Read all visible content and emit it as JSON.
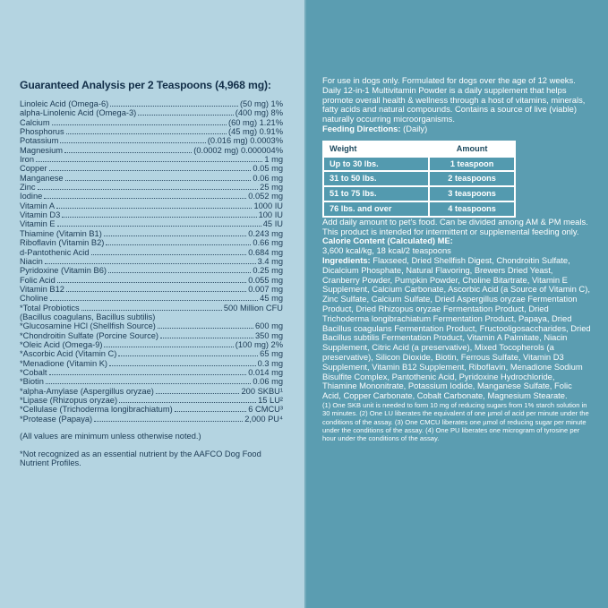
{
  "colors": {
    "left_panel_bg": "#b4d4e1",
    "right_panel_bg": "#5b9db1",
    "dark_text": "#1b3a54",
    "table_row_bg": "#539aaf",
    "white_text": "#ffffff"
  },
  "left_panel": {
    "title": "Guaranteed Analysis per 2 Teaspoons (4,968 mg):",
    "rows": [
      {
        "name": "Linoleic Acid (Omega-6)",
        "value": "(50 mg) 1%"
      },
      {
        "name": "alpha-Linolenic Acid (Omega-3)",
        "value": "(400 mg) 8%"
      },
      {
        "name": "Calcium",
        "value": "(60 mg) 1.21%"
      },
      {
        "name": "Phosphorus",
        "value": "(45 mg) 0.91%"
      },
      {
        "name": "Potassium",
        "value": "(0.016 mg) 0.0003%"
      },
      {
        "name": "Magnesium",
        "value": "(0.0002 mg) 0.000004%"
      },
      {
        "name": "Iron",
        "value": "1 mg"
      },
      {
        "name": "Copper",
        "value": "0.05 mg"
      },
      {
        "name": "Manganese",
        "value": "0.06 mg"
      },
      {
        "name": "Zinc",
        "value": "25 mg"
      },
      {
        "name": "Iodine",
        "value": "0.052 mg"
      },
      {
        "name": "Vitamin A",
        "value": "1000 IU"
      },
      {
        "name": "Vitamin D3",
        "value": "100 IU"
      },
      {
        "name": "Vitamin E",
        "value": "45 IU"
      },
      {
        "name": "Thiamine (Vitamin B1)",
        "value": "0.243 mg"
      },
      {
        "name": "Riboflavin (Vitamin B2)",
        "value": "0.66 mg"
      },
      {
        "name": "d-Pantothenic Acid",
        "value": "0.684 mg"
      },
      {
        "name": "Niacin",
        "value": "3.4 mg"
      },
      {
        "name": "Pyridoxine (Vitamin B6)",
        "value": "0.25 mg"
      },
      {
        "name": "Folic Acid",
        "value": "0.055 mg"
      },
      {
        "name": "Vitamin B12",
        "value": "0.007 mg"
      },
      {
        "name": "Choline",
        "value": "45 mg"
      },
      {
        "name": "*Total Probiotics",
        "value": "500 Million CFU"
      },
      {
        "name": "(Bacillus coagulans, Bacillus subtilis)",
        "value": ""
      },
      {
        "name": "*Glucosamine HCl (Shellfish Source)",
        "value": "600 mg"
      },
      {
        "name": "*Chondroitin Sulfate (Porcine Source)",
        "value": "350 mg"
      },
      {
        "name": "*Oleic Acid (Omega-9)",
        "value": "(100 mg) 2%"
      },
      {
        "name": "*Ascorbic Acid (Vitamin C)",
        "value": "65 mg"
      },
      {
        "name": "*Menadione (Vitamin K)",
        "value": "0.3 mg"
      },
      {
        "name": "*Cobalt",
        "value": "0.014 mg"
      },
      {
        "name": "*Biotin",
        "value": "0.06 mg"
      },
      {
        "name": "*alpha-Amylase (Aspergillus oryzae)",
        "value": "200 SKBU¹"
      },
      {
        "name": "*Lipase (Rhizopus oryzae)",
        "value": "15 LU²"
      },
      {
        "name": "*Cellulase (Trichoderma longibrachiatum)",
        "value": "6 CMCU³"
      },
      {
        "name": "*Protease (Papaya)",
        "value": "2,000 PU⁴"
      }
    ],
    "values_note": "(All values are minimum unless otherwise noted.)",
    "aafco_note": "*Not recognized as an essential nutrient by the AAFCO Dog Food Nutrient Profiles."
  },
  "right_panel": {
    "intro": "For use in dogs only. Formulated for dogs over the age of 12 weeks. Daily 12-in-1 Multivitamin Powder is a daily supplement that helps promote overall health & wellness through a host of vitamins, minerals, fatty acids and natural compounds. Contains a source of live (viable) naturally occurring microorganisms.",
    "feeding_label": "Feeding Directions:",
    "feeding_rest": " (Daily)",
    "table": {
      "headers": [
        "Weight",
        "Amount"
      ],
      "rows": [
        [
          "Up to 30 lbs.",
          "1 teaspoon"
        ],
        [
          "31 to 50 lbs.",
          "2 teaspoons"
        ],
        [
          "51 to 75 lbs.",
          "3 teaspoons"
        ],
        [
          "76 lbs. and over",
          "4 teaspoons"
        ]
      ]
    },
    "add_daily": "Add daily amount to pet's food. Can be divided among AM & PM meals.",
    "intermittent": "This product is intended for intermittent or supplemental feeding only.",
    "calorie_heading": "Calorie Content (Calculated) ME:",
    "calorie_value": "3,600 kcal/kg, 18 kcal/2 teaspoons",
    "ingredients_label": "Ingredients:",
    "ingredients_text": " Flaxseed, Dried Shellfish Digest, Chondroitin Sulfate, Dicalcium Phosphate, Natural Flavoring, Brewers Dried Yeast, Cranberry Powder, Pumpkin Powder, Choline Bitartrate, Vitamin E Supplement, Calcium Carbonate, Ascorbic Acid (a Source of Vitamin C), Zinc Sulfate, Calcium Sulfate, Dried Aspergillus oryzae Fermentation Product, Dried Rhizopus oryzae Fermentation Product, Dried Trichoderma longibrachiatum Fermentation Product, Papaya, Dried Bacillus coagulans Fermentation Product, Fructooligosaccharides, Dried Bacillus subtilis Fermentation Product, Vitamin A Palmitate, Niacin Supplement, Citric Acid (a preservative), Mixed Tocopherols (a preservative), Silicon Dioxide, Biotin, Ferrous Sulfate, Vitamin D3 Supplement, Vitamin B12 Supplement, Riboflavin, Menadione Sodium Bisulfite Complex, Pantothenic Acid, Pyridoxine Hydrochloride, Thiamine Mononitrate, Potassium Iodide, Manganese Sulfate, Folic Acid, Copper Carbonate, Cobalt Carbonate, Magnesium Stearate.",
    "footnotes": "(1) One SKB unit is needed to form 10 mg of reducing sugars from 1% starch solution in 30 minutes. (2) One LU liberates the equivalent of one µmol of acid per minute under the conditions of the assay. (3) One CMCU liberates one µmol of reducing sugar per minute under the conditions of the assay. (4) One PU liberates one microgram of tyrosine per hour under the conditions of the assay."
  }
}
